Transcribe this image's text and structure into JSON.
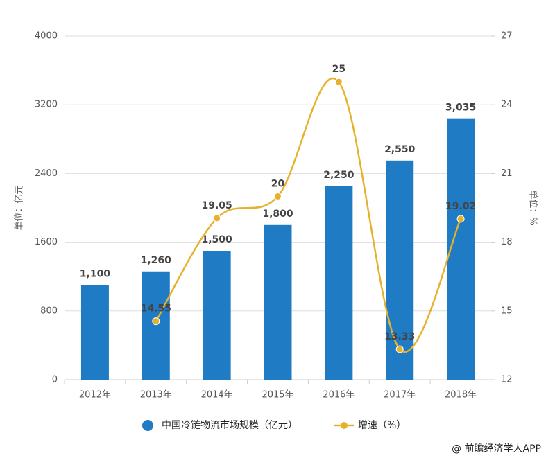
{
  "chart_data": {
    "type": "combo",
    "categories": [
      "2012年",
      "2013年",
      "2014年",
      "2015年",
      "2016年",
      "2017年",
      "2018年"
    ],
    "series": [
      {
        "name": "中国冷链物流市场规模（亿元）",
        "type": "bar",
        "color": "#1f7bc4",
        "values": [
          1100,
          1260,
          1500,
          1800,
          2250,
          2550,
          3035
        ],
        "value_labels": [
          "1,100",
          "1,260",
          "1,500",
          "1,800",
          "2,250",
          "2,550",
          "3,035"
        ]
      },
      {
        "name": "增速（%）",
        "type": "line",
        "axis": "y2",
        "color": "#e6b22e",
        "values": [
          null,
          14.55,
          19.05,
          20,
          25,
          13.33,
          19.02
        ]
      }
    ],
    "ylim": [
      0,
      4000
    ],
    "yticks": [
      0,
      800,
      1600,
      2400,
      3200,
      4000
    ],
    "y2lim": [
      12,
      27
    ],
    "y2ticks": [
      12,
      15,
      18,
      21,
      24,
      27
    ],
    "ylabel": "单位：亿元",
    "y2label": "单位：%",
    "grid": true,
    "source": "@ 前瞻经济学人APP"
  }
}
